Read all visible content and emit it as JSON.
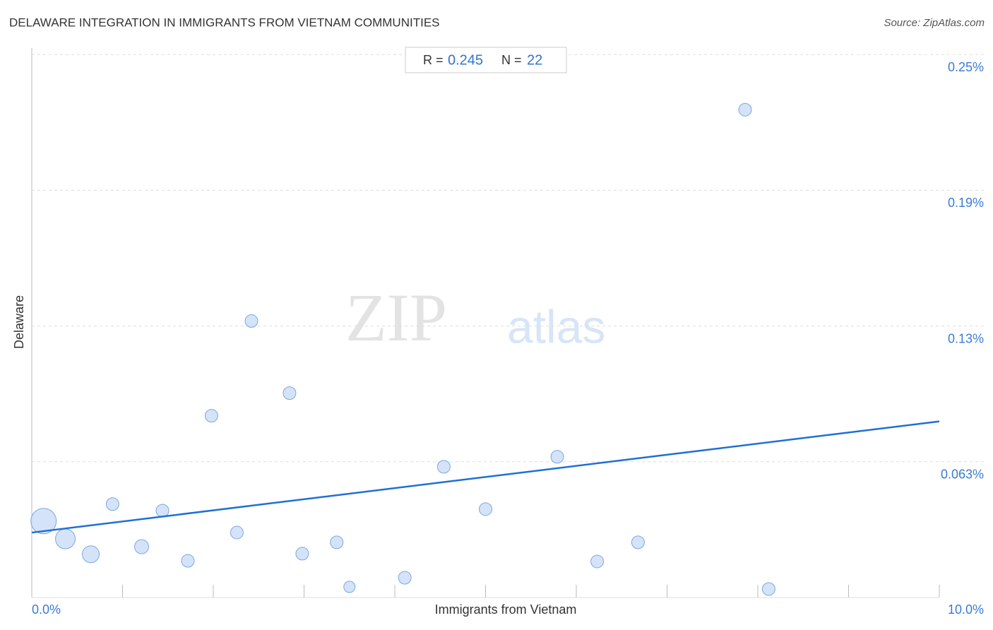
{
  "chart_data": {
    "type": "scatter",
    "title": "DELAWARE INTEGRATION IN IMMIGRANTS FROM VIETNAM COMMUNITIES",
    "source": "Source: ZipAtlas.com",
    "x_label": "Immigrants from Vietnam",
    "y_label": "Delaware",
    "watermark": [
      "ZIP",
      "atlas"
    ],
    "stats": {
      "r_label": "R =",
      "r": 0.245,
      "n_label": "N =",
      "n": 22
    },
    "xlim": [
      0,
      10
    ],
    "ylim": [
      0,
      0.253
    ],
    "xticks": [
      {
        "value": 0,
        "label": "0.0%"
      },
      {
        "value": 10,
        "label": "10.0%"
      }
    ],
    "x_tick_marks": [
      1,
      2,
      3,
      4,
      5,
      6,
      7,
      8,
      9,
      10
    ],
    "yticks": [
      {
        "value": 0.0625,
        "label": "0.063%"
      },
      {
        "value": 0.125,
        "label": "0.13%"
      },
      {
        "value": 0.1875,
        "label": "0.19%"
      },
      {
        "value": 0.25,
        "label": "0.25%"
      }
    ],
    "grid": true,
    "color": "#c9dcf5",
    "edge_color": "#7aa7e3",
    "x": [
      0.13,
      0.37,
      0.65,
      0.89,
      1.21,
      1.44,
      1.72,
      1.98,
      2.26,
      2.42,
      2.84,
      2.98,
      3.36,
      3.5,
      4.11,
      4.54,
      5.0,
      5.79,
      6.23,
      6.68,
      7.86,
      8.12
    ],
    "values": [
      0.0352,
      0.027,
      0.0199,
      0.043,
      0.0234,
      0.04,
      0.0169,
      0.0837,
      0.0299,
      0.1273,
      0.0941,
      0.0202,
      0.0254,
      0.0049,
      0.0091,
      0.0602,
      0.0407,
      0.0648,
      0.0166,
      0.0254,
      0.2246,
      0.0039
    ],
    "sizes": [
      18,
      14,
      12,
      9,
      10,
      9,
      9,
      9,
      9,
      9,
      9,
      9,
      9,
      8,
      9,
      9,
      9,
      9,
      9,
      9,
      9,
      9
    ],
    "trendline": {
      "color": "#1f6fd6",
      "x": [
        0,
        10
      ],
      "y": [
        0.0299,
        0.0811
      ]
    }
  }
}
